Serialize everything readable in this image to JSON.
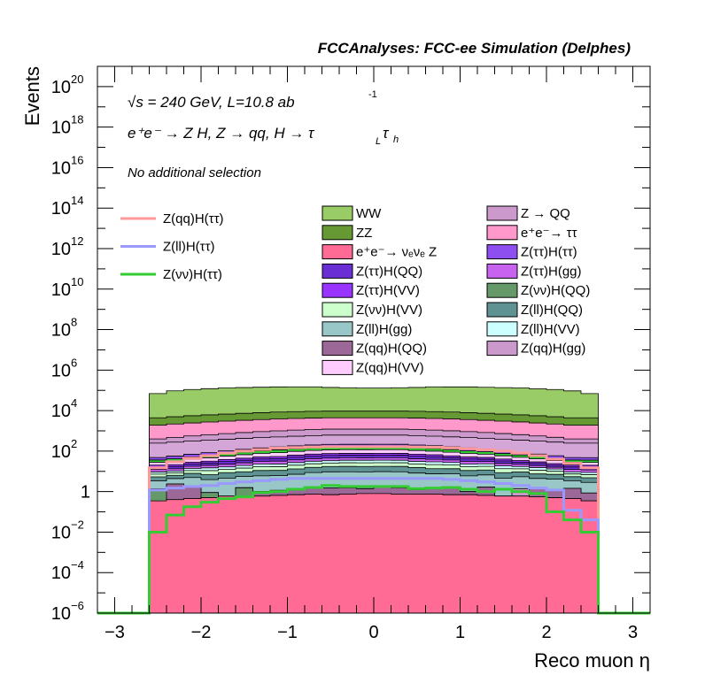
{
  "chart_data": {
    "type": "area",
    "title": "FCCAnalyses: FCC-ee Simulation (Delphes)",
    "xlabel": "Reco muon η",
    "ylabel": "Events",
    "xlim": [
      -3.2,
      3.2
    ],
    "ylim_log10": [
      -6,
      21
    ],
    "yscale": "log",
    "x_ticks": [
      -3,
      -2,
      -1,
      0,
      1,
      2,
      3
    ],
    "x_tick_labels": [
      "−3",
      "−2",
      "−1",
      "0",
      "1",
      "2",
      "3"
    ],
    "y_tick_exponents": [
      -6,
      -4,
      -2,
      0,
      2,
      4,
      6,
      8,
      10,
      12,
      14,
      16,
      18,
      20
    ],
    "y_tick_labels": [
      {
        "base": "10",
        "exp": "−6"
      },
      {
        "base": "10",
        "exp": "−4"
      },
      {
        "base": "10",
        "exp": "−2"
      },
      {
        "base": "1",
        "exp": ""
      },
      {
        "base": "10",
        "exp": "2"
      },
      {
        "base": "10",
        "exp": "4"
      },
      {
        "base": "10",
        "exp": "6"
      },
      {
        "base": "10",
        "exp": "8"
      },
      {
        "base": "10",
        "exp": "10"
      },
      {
        "base": "10",
        "exp": "12"
      },
      {
        "base": "10",
        "exp": "14"
      },
      {
        "base": "10",
        "exp": "16"
      },
      {
        "base": "10",
        "exp": "18"
      },
      {
        "base": "10",
        "exp": "20"
      }
    ],
    "annotations": {
      "energy": "√s = 240 GeV, L=10.8 ab",
      "energy_sup": "-1",
      "process": "e⁺e⁻ → Z H, Z → qq, H → τ",
      "process_sub1": "L",
      "process_tau": "τ",
      "process_sub2": "h",
      "selection": "No additional selection"
    },
    "bin_edges": [
      -2.6,
      -2.4,
      -2.2,
      -2.0,
      -1.8,
      -1.6,
      -1.4,
      -1.2,
      -1.0,
      -0.8,
      -0.6,
      -0.4,
      -0.2,
      0.0,
      0.2,
      0.4,
      0.6,
      0.8,
      1.0,
      1.2,
      1.4,
      1.6,
      1.8,
      2.0,
      2.2,
      2.4,
      2.6
    ],
    "stacked_series": [
      {
        "name": "e⁺e⁻→ νₑνₑ Z",
        "color": "#ff6b94",
        "values": [
          0.35,
          0.4,
          0.45,
          0.5,
          0.6,
          0.55,
          0.6,
          0.65,
          0.7,
          0.75,
          0.7,
          0.75,
          0.8,
          0.8,
          0.75,
          0.75,
          0.75,
          0.7,
          0.7,
          0.65,
          0.6,
          0.6,
          0.55,
          0.5,
          0.45,
          0.35
        ]
      },
      {
        "name": "Z(νν)H(QQ)",
        "color": "#66996a",
        "values": [
          1.0,
          0,
          0,
          0.4,
          0,
          1.0,
          0,
          0,
          0,
          0,
          0,
          0,
          0,
          0,
          0,
          0,
          0,
          0,
          0,
          0,
          0,
          0,
          0,
          0,
          0,
          0
        ]
      },
      {
        "name": "Z(qq)H(QQ)",
        "color": "#9c6897",
        "values": [
          0,
          2.0,
          1.5,
          0,
          0,
          0,
          0.4,
          0.5,
          0.5,
          1.0,
          0.8,
          0.8,
          0.6,
          0.9,
          0.8,
          0.5,
          0.8,
          0.8,
          0.3,
          1.0,
          0,
          0,
          0.9,
          0.6,
          1.0,
          0.5
        ]
      },
      {
        "name": "Z → QQ",
        "color": "#cc99cc",
        "values": [
          0,
          0,
          0,
          0,
          0,
          0,
          0,
          0,
          0,
          0,
          0,
          0,
          0,
          0,
          0,
          0,
          0,
          0,
          0,
          0,
          0,
          0.8,
          0,
          0,
          0,
          0
        ]
      },
      {
        "name": "Z(ll)H(gg)",
        "color": "#99c7c7",
        "values": [
          2,
          2,
          3,
          3,
          4,
          4,
          5,
          5,
          6,
          7,
          8,
          8,
          8,
          8,
          8,
          7,
          6,
          6,
          5,
          5,
          4,
          4,
          3,
          3,
          2,
          2
        ]
      },
      {
        "name": "Z(ll)H(QQ)",
        "color": "#5f9393",
        "values": [
          2,
          2,
          3,
          3,
          4,
          4,
          5,
          5,
          6,
          7,
          8,
          8,
          8,
          8,
          8,
          7,
          6,
          6,
          5,
          5,
          4,
          4,
          3,
          3,
          2,
          2
        ]
      },
      {
        "name": "Z(νν)H(VV)",
        "color": "#ccffcc",
        "values": [
          2,
          2,
          3,
          4,
          4,
          5,
          6,
          6,
          7,
          8,
          8,
          9,
          9,
          9,
          9,
          8,
          8,
          7,
          6,
          6,
          5,
          4,
          4,
          3,
          2,
          2
        ]
      },
      {
        "name": "Z(ll)H(VV)",
        "color": "#ccffff",
        "values": [
          2,
          2,
          3,
          4,
          4,
          5,
          6,
          6,
          7,
          8,
          8,
          9,
          9,
          9,
          9,
          8,
          8,
          7,
          6,
          6,
          5,
          4,
          4,
          3,
          2,
          2
        ]
      },
      {
        "name": "Z(ττ)H(gg)",
        "color": "#c763ee",
        "values": [
          3,
          3,
          4,
          5,
          6,
          7,
          8,
          9,
          10,
          11,
          12,
          12,
          12,
          12,
          12,
          11,
          10,
          9,
          8,
          7,
          6,
          5,
          4,
          3,
          3,
          3
        ]
      },
      {
        "name": "Z(ττ)H(QQ)",
        "color": "#6a2fd4",
        "values": [
          4,
          4,
          5,
          6,
          8,
          9,
          10,
          11,
          13,
          14,
          15,
          15,
          15,
          15,
          15,
          14,
          13,
          11,
          10,
          9,
          8,
          6,
          5,
          4,
          4,
          4
        ]
      },
      {
        "name": "Z(ττ)H(VV)",
        "color": "#9933ff",
        "values": [
          4,
          4,
          5,
          6,
          8,
          9,
          10,
          11,
          13,
          14,
          15,
          15,
          15,
          15,
          15,
          14,
          13,
          11,
          10,
          9,
          8,
          6,
          5,
          4,
          4,
          4
        ]
      },
      {
        "name": "Z(qq)H(VV)",
        "color": "#ffccff",
        "values": [
          8,
          10,
          12,
          15,
          18,
          22,
          26,
          30,
          34,
          37,
          40,
          40,
          40,
          40,
          40,
          37,
          34,
          30,
          26,
          22,
          18,
          15,
          12,
          10,
          8,
          8
        ]
      },
      {
        "name": "Z(νν)H(ττ)",
        "color": "#33cc33",
        "values": [
          8,
          10,
          12,
          15,
          18,
          22,
          26,
          30,
          34,
          37,
          40,
          40,
          40,
          40,
          40,
          37,
          34,
          30,
          26,
          22,
          18,
          15,
          12,
          10,
          8,
          8
        ]
      },
      {
        "name": "Z(ττ)H(ττ)",
        "color": "#8e4ff0",
        "values": [
          12,
          15,
          18,
          22,
          28,
          34,
          40,
          46,
          52,
          56,
          60,
          60,
          60,
          60,
          60,
          56,
          52,
          46,
          40,
          34,
          28,
          22,
          18,
          15,
          12,
          12
        ]
      },
      {
        "name": "Z(νν)H(ττ)",
        "color": "#d4a6d8",
        "values": [
          200,
          220,
          240,
          260,
          280,
          300,
          320,
          340,
          360,
          380,
          400,
          400,
          400,
          400,
          400,
          380,
          360,
          340,
          320,
          300,
          280,
          260,
          240,
          220,
          200,
          200
        ]
      },
      {
        "name": "Z(qq)H(gg)",
        "color": "#cc99cc",
        "values": [
          150,
          200,
          250,
          300,
          350,
          400,
          450,
          500,
          550,
          600,
          600,
          600,
          600,
          600,
          600,
          600,
          550,
          500,
          450,
          400,
          350,
          300,
          250,
          200,
          150,
          150
        ]
      },
      {
        "name": "e⁺e⁻→ ττ",
        "color": "#ff99cc",
        "values": [
          1500,
          1700,
          1900,
          2100,
          2300,
          2500,
          2700,
          2900,
          3000,
          3100,
          3200,
          3200,
          3200,
          3200,
          3200,
          3100,
          3000,
          2900,
          2700,
          2500,
          2300,
          2100,
          1900,
          1700,
          1500,
          1500
        ]
      },
      {
        "name": "ZZ",
        "color": "#669933",
        "values": [
          2500,
          2800,
          3100,
          3400,
          3700,
          4000,
          4300,
          4600,
          4800,
          5000,
          5000,
          5000,
          5000,
          5000,
          5000,
          5000,
          4800,
          4600,
          4300,
          4000,
          3700,
          3400,
          3100,
          2800,
          2500,
          2500
        ]
      },
      {
        "name": "WW",
        "color": "#99cc66",
        "values": [
          65000,
          90000,
          105000,
          115000,
          125000,
          130000,
          135000,
          140000,
          140000,
          140000,
          130000,
          125000,
          120000,
          120000,
          125000,
          130000,
          140000,
          140000,
          140000,
          135000,
          130000,
          125000,
          115000,
          105000,
          90000,
          65000
        ]
      }
    ],
    "line_series": [
      {
        "name": "Z(qq)H(ττ)",
        "color": "#ff9999",
        "values": [
          15,
          30,
          45,
          60,
          80,
          100,
          120,
          140,
          150,
          160,
          165,
          165,
          165,
          165,
          165,
          160,
          155,
          145,
          130,
          115,
          100,
          80,
          60,
          40,
          25,
          15
        ]
      },
      {
        "name": "Z(ll)H(ττ)",
        "color": "#9999ff",
        "values": [
          1.2,
          1.5,
          1.8,
          2.0,
          2.5,
          3.0,
          3.5,
          4.0,
          4.5,
          4.5,
          4.5,
          4.5,
          4.5,
          4.5,
          4.5,
          4.5,
          4.5,
          4.0,
          3.5,
          3.0,
          2.5,
          2.0,
          1.5,
          1.2,
          0.12,
          0.04
        ]
      },
      {
        "name": "Z(νν)H(ττ)",
        "color": "#33cc33",
        "values": [
          0.01,
          0.07,
          0.18,
          0.3,
          0.45,
          0.55,
          0.9,
          1.0,
          1.3,
          1.6,
          2.0,
          1.8,
          1.8,
          1.8,
          1.8,
          1.4,
          1.5,
          1.6,
          1.3,
          1.0,
          1.3,
          1.0,
          0.8,
          0.1,
          0.04,
          0.01
        ]
      }
    ],
    "legend_left": [
      {
        "name": "Z(qq)H(ττ)",
        "color": "#ff9999"
      },
      {
        "name": "Z(ll)H(ττ)",
        "color": "#9999ff"
      },
      {
        "name": "Z(νν)H(ττ)",
        "color": "#33cc33"
      }
    ],
    "legend_mid": [
      {
        "name": "WW",
        "color": "#99cc66"
      },
      {
        "name": "ZZ",
        "color": "#669933"
      },
      {
        "name": "e⁺e⁻→ νₑνₑ Z",
        "color": "#ff6b94"
      },
      {
        "name": "Z(ττ)H(QQ)",
        "color": "#6a2fd4"
      },
      {
        "name": "Z(ττ)H(VV)",
        "color": "#9933ff"
      },
      {
        "name": "Z(νν)H(VV)",
        "color": "#ccffcc"
      },
      {
        "name": "Z(ll)H(gg)",
        "color": "#99c7c7"
      },
      {
        "name": "Z(qq)H(QQ)",
        "color": "#9c6897"
      },
      {
        "name": "Z(qq)H(VV)",
        "color": "#ffccff"
      }
    ],
    "legend_right": [
      {
        "name": "Z → QQ",
        "color": "#cc99cc"
      },
      {
        "name": "e⁺e⁻→ ττ",
        "color": "#ff99cc"
      },
      {
        "name": "Z(ττ)H(ττ)",
        "color": "#8e4ff0"
      },
      {
        "name": "Z(ττ)H(gg)",
        "color": "#c763ee"
      },
      {
        "name": "Z(νν)H(QQ)",
        "color": "#66996a"
      },
      {
        "name": "Z(ll)H(QQ)",
        "color": "#5f9393"
      },
      {
        "name": "Z(ll)H(VV)",
        "color": "#ccffff"
      },
      {
        "name": "Z(qq)H(gg)",
        "color": "#cc99cc"
      }
    ]
  }
}
